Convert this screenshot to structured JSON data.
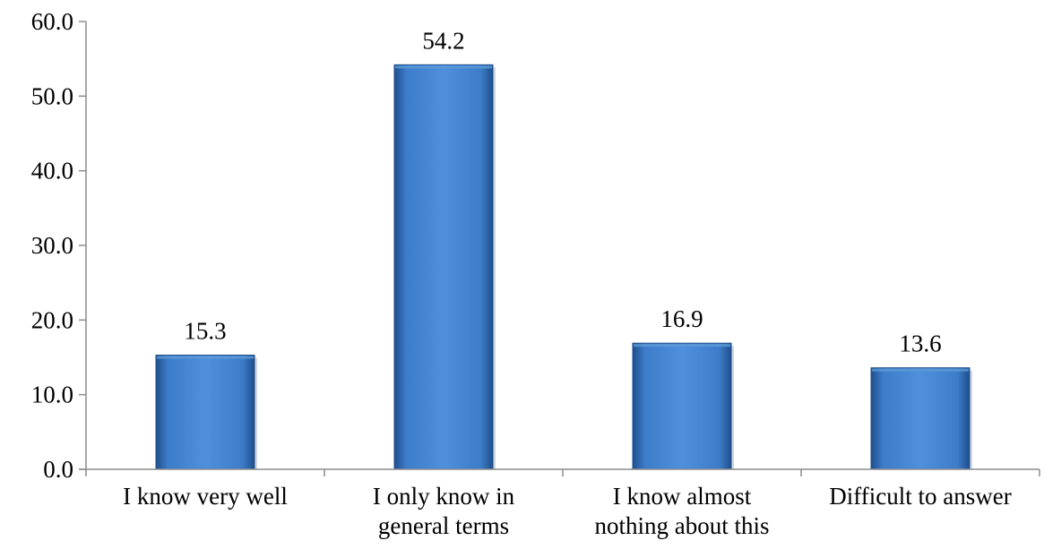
{
  "chart_data": {
    "type": "bar",
    "title": "",
    "xlabel": "",
    "ylabel": "",
    "categories": [
      [
        "I know very well"
      ],
      [
        "I only know in",
        "general terms"
      ],
      [
        "I know almost",
        "nothing about this"
      ],
      [
        "Difficult to answer"
      ]
    ],
    "values": [
      15.3,
      54.2,
      16.9,
      13.6
    ],
    "value_labels": [
      "15.3",
      "54.2",
      "16.9",
      "13.6"
    ],
    "ylim": [
      0,
      60
    ],
    "yticks": [
      "0.0",
      "10.0",
      "20.0",
      "30.0",
      "40.0",
      "50.0",
      "60.0"
    ],
    "grid": false,
    "legend": "none",
    "colors": {
      "bar_light": "#5b9bd5",
      "bar_main": "#3d7cc9",
      "bar_dark": "#1f4e8c",
      "axis": "#8c8c8c"
    }
  }
}
